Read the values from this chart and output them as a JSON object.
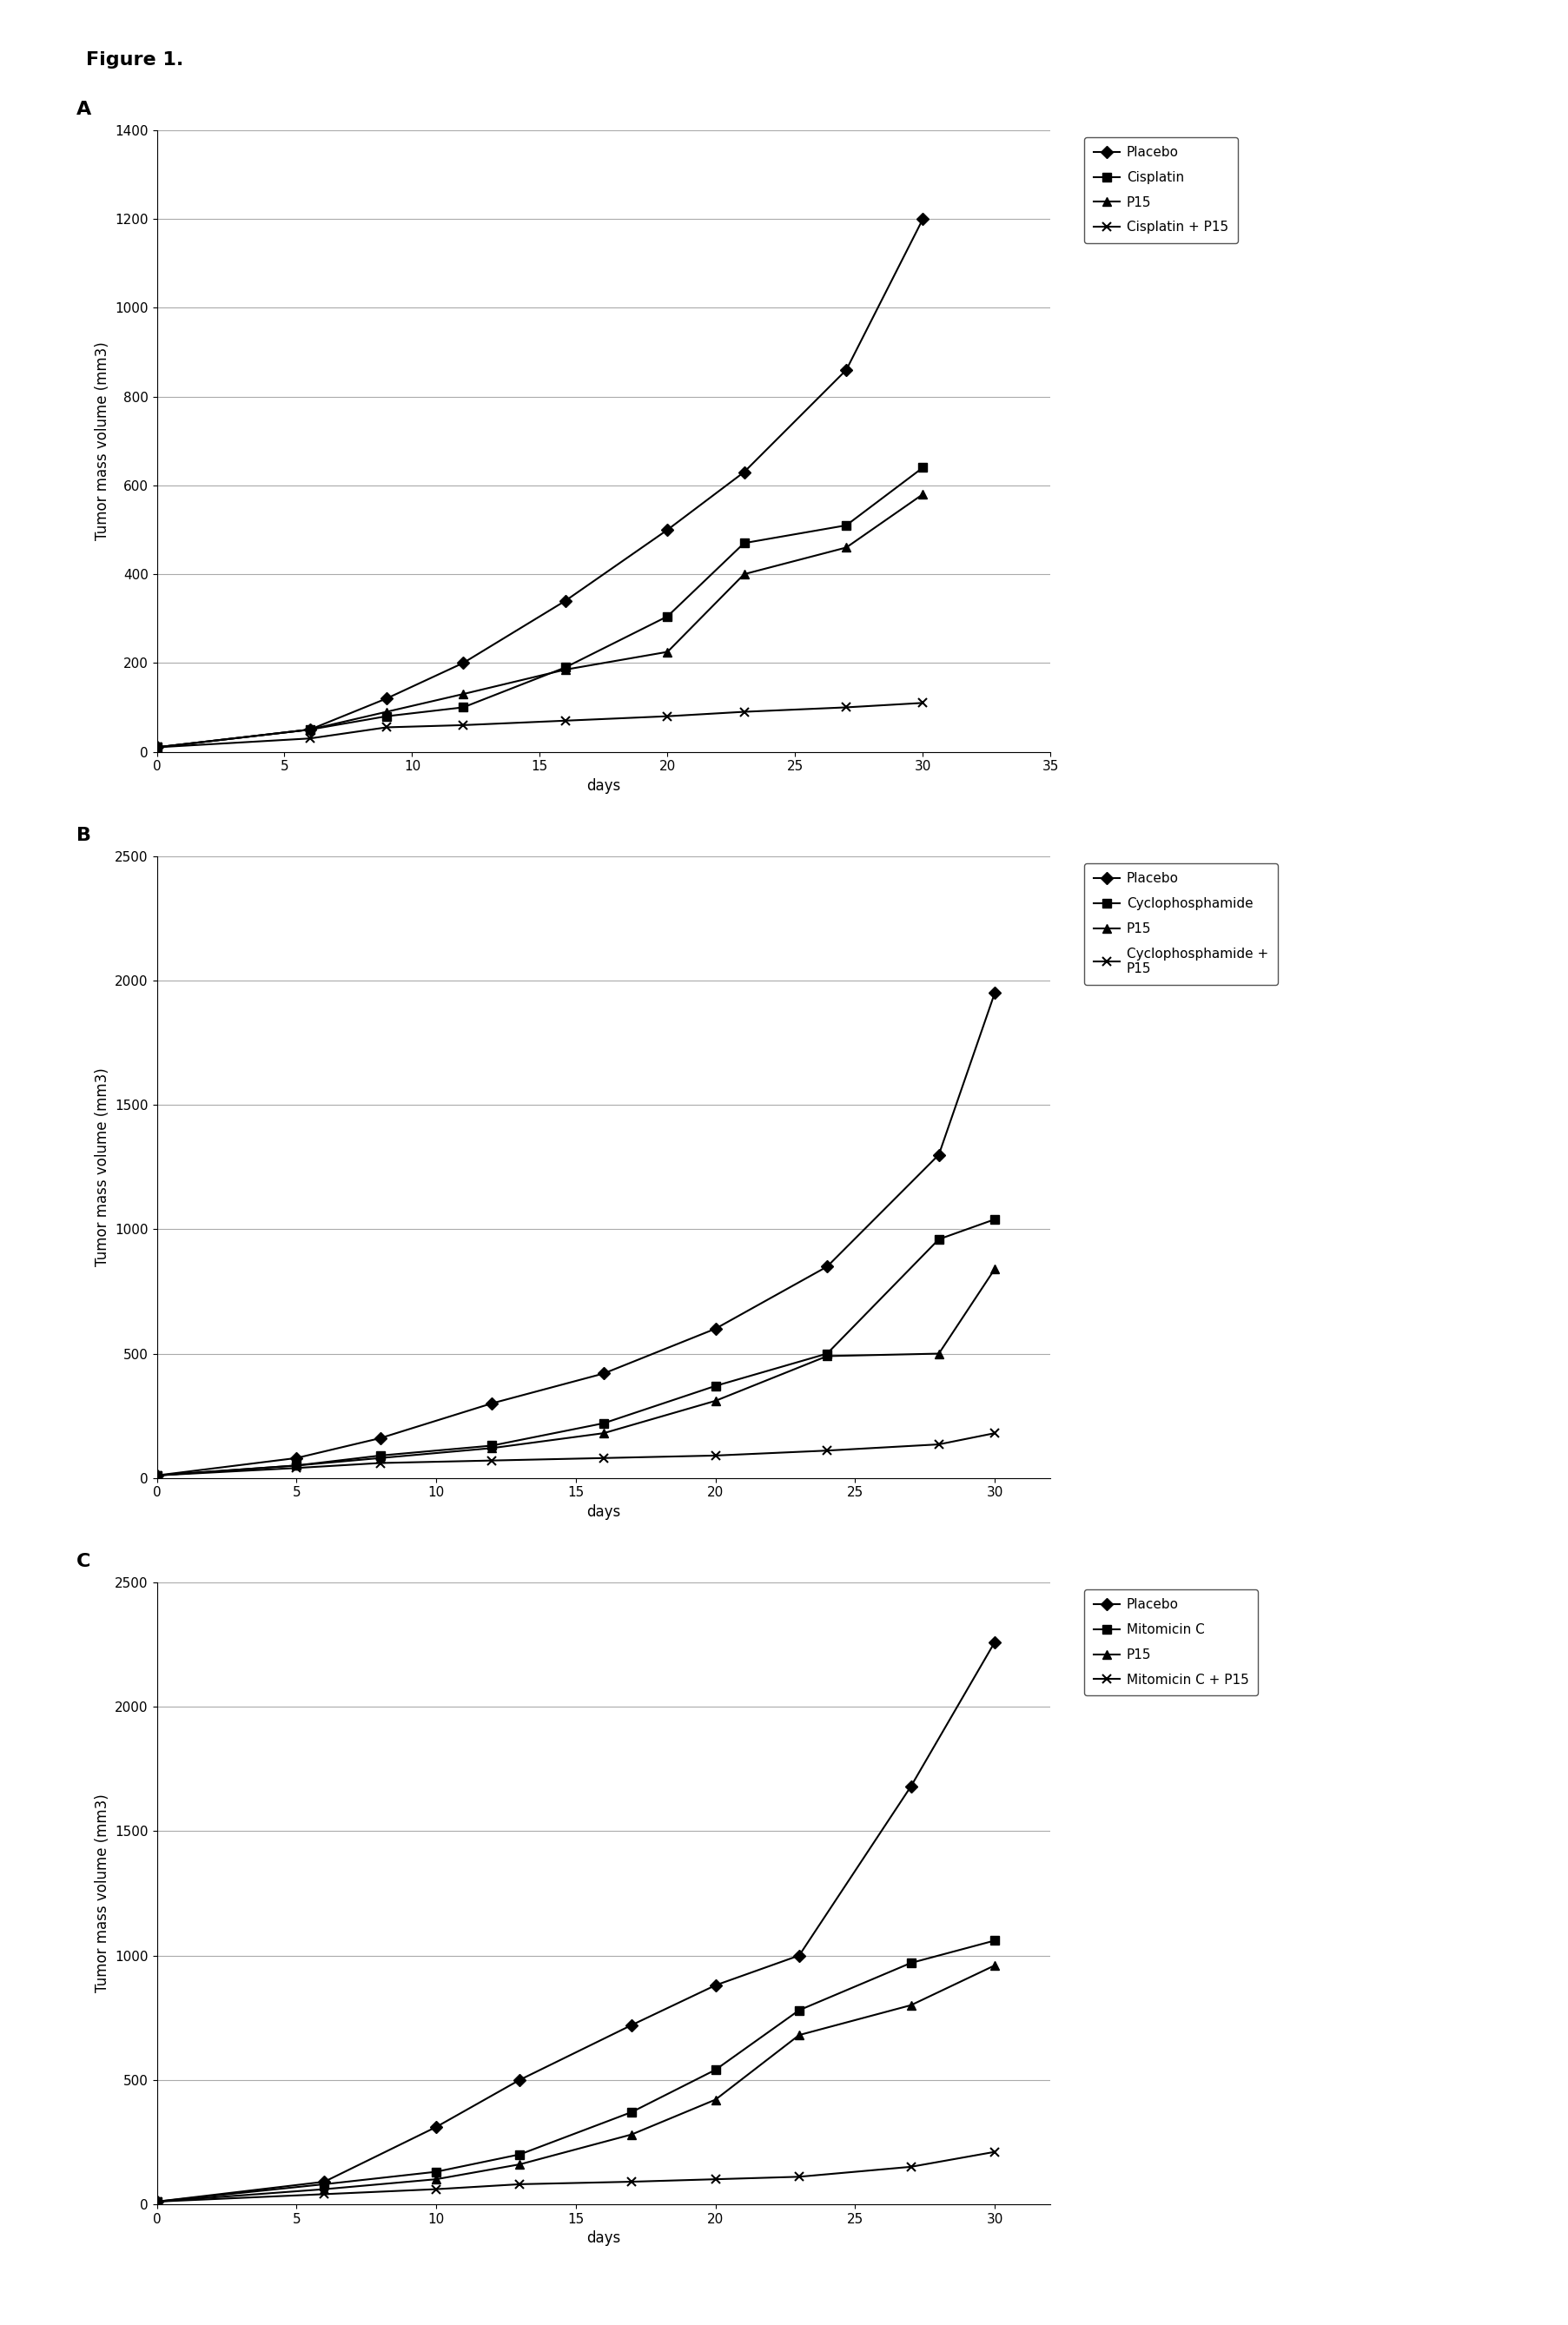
{
  "figure_title": "Figure 1.",
  "panels": [
    {
      "label": "A",
      "ylabel": "Tumor mass volume (mm3)",
      "xlabel": "days",
      "ylim": [
        0,
        1400
      ],
      "yticks": [
        0,
        200,
        400,
        600,
        800,
        1000,
        1200,
        1400
      ],
      "xlim": [
        0,
        35
      ],
      "xticks": [
        0,
        5,
        10,
        15,
        20,
        25,
        30,
        35
      ],
      "series": [
        {
          "label": "Placebo",
          "marker": "D",
          "x": [
            0,
            6,
            9,
            12,
            16,
            20,
            23,
            27,
            30
          ],
          "y": [
            10,
            50,
            120,
            200,
            340,
            500,
            630,
            860,
            1200
          ]
        },
        {
          "label": "Cisplatin",
          "marker": "s",
          "x": [
            0,
            6,
            9,
            12,
            16,
            20,
            23,
            27,
            30
          ],
          "y": [
            10,
            50,
            80,
            100,
            190,
            305,
            470,
            510,
            640
          ]
        },
        {
          "label": "P15",
          "marker": "^",
          "x": [
            0,
            6,
            9,
            12,
            16,
            20,
            23,
            27,
            30
          ],
          "y": [
            10,
            50,
            90,
            130,
            185,
            225,
            400,
            460,
            580
          ]
        },
        {
          "label": "Cisplatin + P15",
          "marker": "x",
          "x": [
            0,
            6,
            9,
            12,
            16,
            20,
            23,
            27,
            30
          ],
          "y": [
            10,
            30,
            55,
            60,
            70,
            80,
            90,
            100,
            110
          ]
        }
      ]
    },
    {
      "label": "B",
      "ylabel": "Tumor mass volume (mm3)",
      "xlabel": "days",
      "ylim": [
        0,
        2500
      ],
      "yticks": [
        0,
        500,
        1000,
        1500,
        2000,
        2500
      ],
      "xlim": [
        0,
        32
      ],
      "xticks": [
        0,
        5,
        10,
        15,
        20,
        25,
        30
      ],
      "series": [
        {
          "label": "Placebo",
          "marker": "D",
          "x": [
            0,
            5,
            8,
            12,
            16,
            20,
            24,
            28,
            30
          ],
          "y": [
            10,
            80,
            160,
            300,
            420,
            600,
            850,
            1300,
            1950
          ]
        },
        {
          "label": "Cyclophosphamide",
          "marker": "s",
          "x": [
            0,
            5,
            8,
            12,
            16,
            20,
            24,
            28,
            30
          ],
          "y": [
            10,
            50,
            90,
            130,
            220,
            370,
            500,
            960,
            1040
          ]
        },
        {
          "label": "P15",
          "marker": "^",
          "x": [
            0,
            5,
            8,
            12,
            16,
            20,
            24,
            28,
            30
          ],
          "y": [
            10,
            50,
            80,
            120,
            180,
            310,
            490,
            500,
            840
          ]
        },
        {
          "label": "Cyclophosphamide +\nP15",
          "marker": "x",
          "x": [
            0,
            5,
            8,
            12,
            16,
            20,
            24,
            28,
            30
          ],
          "y": [
            10,
            40,
            60,
            70,
            80,
            90,
            110,
            135,
            180
          ]
        }
      ]
    },
    {
      "label": "C",
      "ylabel": "Tumor mass volume (mm3)",
      "xlabel": "days",
      "ylim": [
        0,
        2500
      ],
      "yticks": [
        0,
        500,
        1000,
        1500,
        2000,
        2500
      ],
      "xlim": [
        0,
        32
      ],
      "xticks": [
        0,
        5,
        10,
        15,
        20,
        25,
        30
      ],
      "series": [
        {
          "label": "Placebo",
          "marker": "D",
          "x": [
            0,
            6,
            10,
            13,
            17,
            20,
            23,
            27,
            30
          ],
          "y": [
            10,
            90,
            310,
            500,
            720,
            880,
            1000,
            1680,
            2260
          ]
        },
        {
          "label": "Mitomicin C",
          "marker": "s",
          "x": [
            0,
            6,
            10,
            13,
            17,
            20,
            23,
            27,
            30
          ],
          "y": [
            10,
            80,
            130,
            200,
            370,
            540,
            780,
            970,
            1060
          ]
        },
        {
          "label": "P15",
          "marker": "^",
          "x": [
            0,
            6,
            10,
            13,
            17,
            20,
            23,
            27,
            30
          ],
          "y": [
            10,
            60,
            100,
            160,
            280,
            420,
            680,
            800,
            960
          ]
        },
        {
          "label": "Mitomicin C + P15",
          "marker": "x",
          "x": [
            0,
            6,
            10,
            13,
            17,
            20,
            23,
            27,
            30
          ],
          "y": [
            10,
            40,
            60,
            80,
            90,
            100,
            110,
            150,
            210
          ]
        }
      ]
    }
  ],
  "line_color": "#000000",
  "marker_size": 7,
  "line_width": 1.5,
  "font_size": 11,
  "label_font_size": 12,
  "title_font_size": 16,
  "panel_label_font_size": 16,
  "background_color": "#ffffff",
  "grid_color": "#aaaaaa",
  "grid_lw": 0.8
}
